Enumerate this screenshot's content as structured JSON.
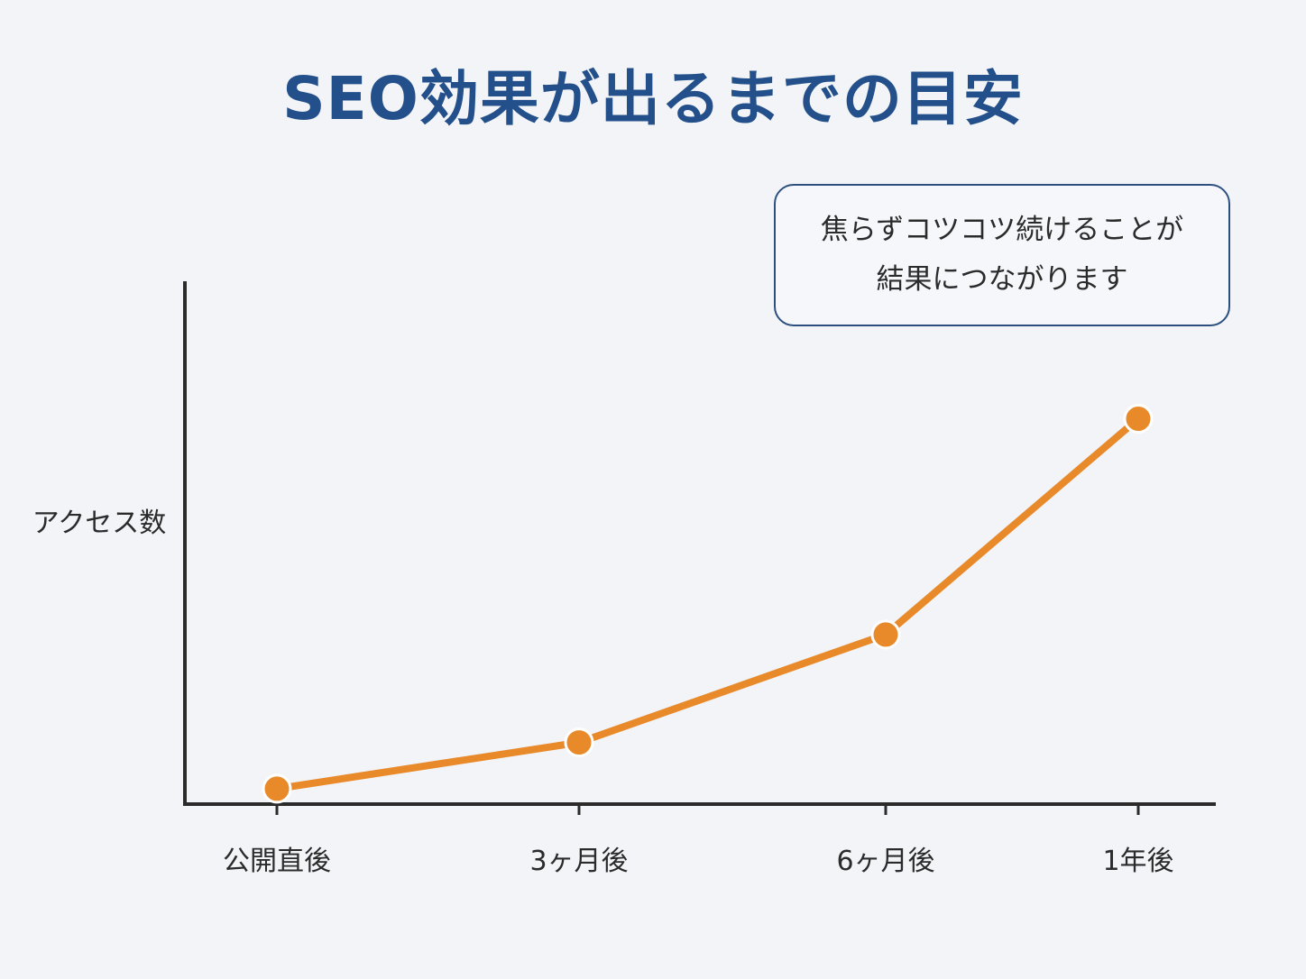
{
  "chart_data": {
    "type": "line",
    "title": "SEO効果が出るまでの目安",
    "ylabel": "アクセス数",
    "xlabel": "",
    "categories": [
      "公開直後",
      "3ヶ月後",
      "6ヶ月後",
      "1年後"
    ],
    "x": [
      0,
      3,
      6,
      12
    ],
    "values": [
      3,
      12,
      33,
      75
    ],
    "ylim": [
      0,
      100
    ],
    "annotation": [
      "焦らずコツコツ続けることが",
      "結果につながります"
    ],
    "grid": false,
    "line_color": "#e8892a",
    "axis_color": "#2b2b2b",
    "title_color": "#23508a"
  }
}
